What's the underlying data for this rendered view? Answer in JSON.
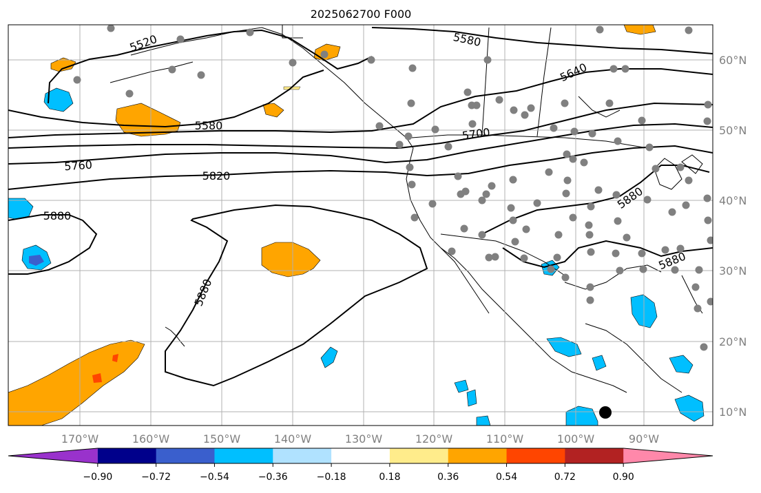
{
  "title": "2025062700 F000",
  "lon_labels": [
    "170°W",
    "160°W",
    "150°W",
    "140°W",
    "130°W",
    "120°W",
    "110°W",
    "100°W",
    "90°W"
  ],
  "lat_labels": [
    "60°N",
    "50°N",
    "40°N",
    "30°N",
    "20°N",
    "10°N"
  ],
  "contour_labels": [
    "5520",
    "5580",
    "5580",
    "5640",
    "5700",
    "5760",
    "5820",
    "5880",
    "5880",
    "5880",
    "5880"
  ],
  "colorbar": {
    "ticks": [
      "−0.90",
      "−0.72",
      "−0.54",
      "−0.36",
      "−0.18",
      "0.18",
      "0.36",
      "0.54",
      "0.72",
      "0.90"
    ],
    "colors": [
      "#9932CC",
      "#00008B",
      "#3A5FCD",
      "#00BFFF",
      "#B0E2FF",
      "#FFFFFF",
      "#FFEC8B",
      "#FFA500",
      "#FF4500",
      "#B22222",
      "#FF88AA"
    ]
  },
  "colors": {
    "contour": "#000000",
    "station": "#808080",
    "grid": "#b0b0b0",
    "tick_label": "#808080"
  }
}
